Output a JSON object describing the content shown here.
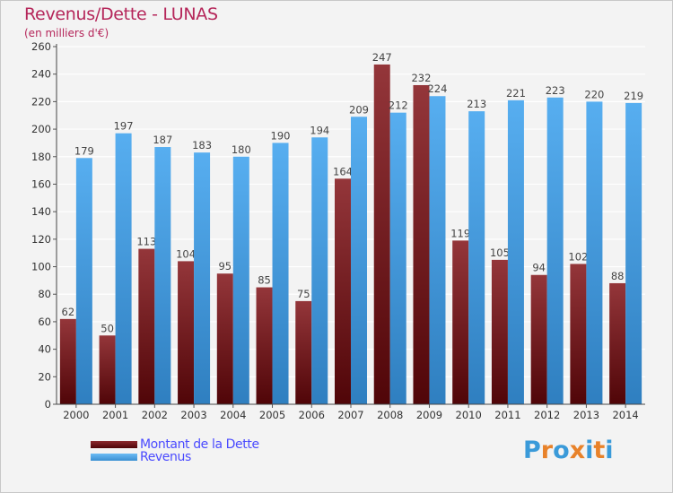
{
  "title": "Revenus/Dette - LUNAS",
  "subtitle": "(en milliers d'€)",
  "legend": [
    {
      "label": "Montant de la Dette",
      "color": "#6e0f14"
    },
    {
      "label": "Revenus",
      "color": "#4ea6ea"
    }
  ],
  "logo": {
    "text": "Proxiti",
    "colors": [
      "#3a9ad9",
      "#e8822a",
      "#3a9ad9",
      "#e8822a",
      "#3a9ad9",
      "#e8822a",
      "#3a9ad9"
    ]
  },
  "chart_data": {
    "type": "bar",
    "categories": [
      "2000",
      "2001",
      "2002",
      "2003",
      "2004",
      "2005",
      "2006",
      "2007",
      "2008",
      "2009",
      "2010",
      "2011",
      "2012",
      "2013",
      "2014"
    ],
    "series": [
      {
        "name": "Montant de la Dette",
        "color": "#7a1a1e",
        "values": [
          62,
          50,
          113,
          104,
          95,
          85,
          75,
          164,
          247,
          232,
          119,
          105,
          94,
          102,
          88
        ]
      },
      {
        "name": "Revenus",
        "color": "#4ea6ea",
        "values": [
          179,
          197,
          187,
          183,
          180,
          190,
          194,
          209,
          212,
          224,
          213,
          221,
          223,
          220,
          219
        ]
      }
    ],
    "yticks": [
      0,
      20,
      40,
      60,
      80,
      100,
      120,
      140,
      160,
      180,
      200,
      220,
      240,
      260
    ],
    "ylim": [
      0,
      260
    ],
    "grid": true,
    "legend_position": "bottom-left"
  }
}
